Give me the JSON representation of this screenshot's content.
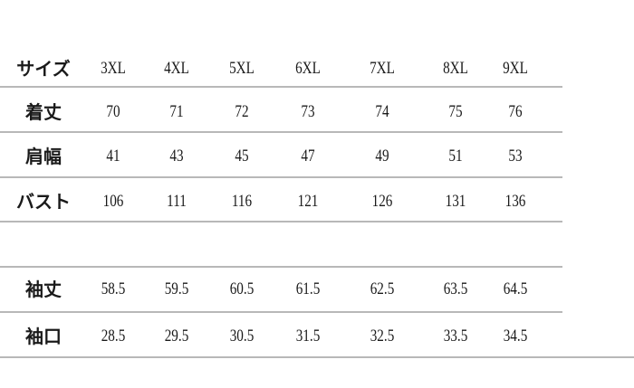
{
  "header": {
    "label": "サイズ",
    "sizes": [
      "3XL",
      "4XL",
      "5XL",
      "6XL",
      "7XL",
      "8XL",
      "9XL"
    ]
  },
  "rows": [
    {
      "label": "着丈",
      "values": [
        "70",
        "71",
        "72",
        "73",
        "74",
        "75",
        "76"
      ]
    },
    {
      "label": "肩幅",
      "values": [
        "41",
        "43",
        "45",
        "47",
        "49",
        "51",
        "53"
      ]
    },
    {
      "label": "バスト",
      "values": [
        "106",
        "111",
        "116",
        "121",
        "126",
        "131",
        "136"
      ]
    },
    {
      "label": "",
      "values": []
    },
    {
      "label": "袖丈",
      "values": [
        "58.5",
        "59.5",
        "60.5",
        "61.5",
        "62.5",
        "63.5",
        "64.5"
      ]
    },
    {
      "label": "袖口",
      "values": [
        "28.5",
        "29.5",
        "30.5",
        "31.5",
        "32.5",
        "33.5",
        "34.5"
      ]
    }
  ]
}
